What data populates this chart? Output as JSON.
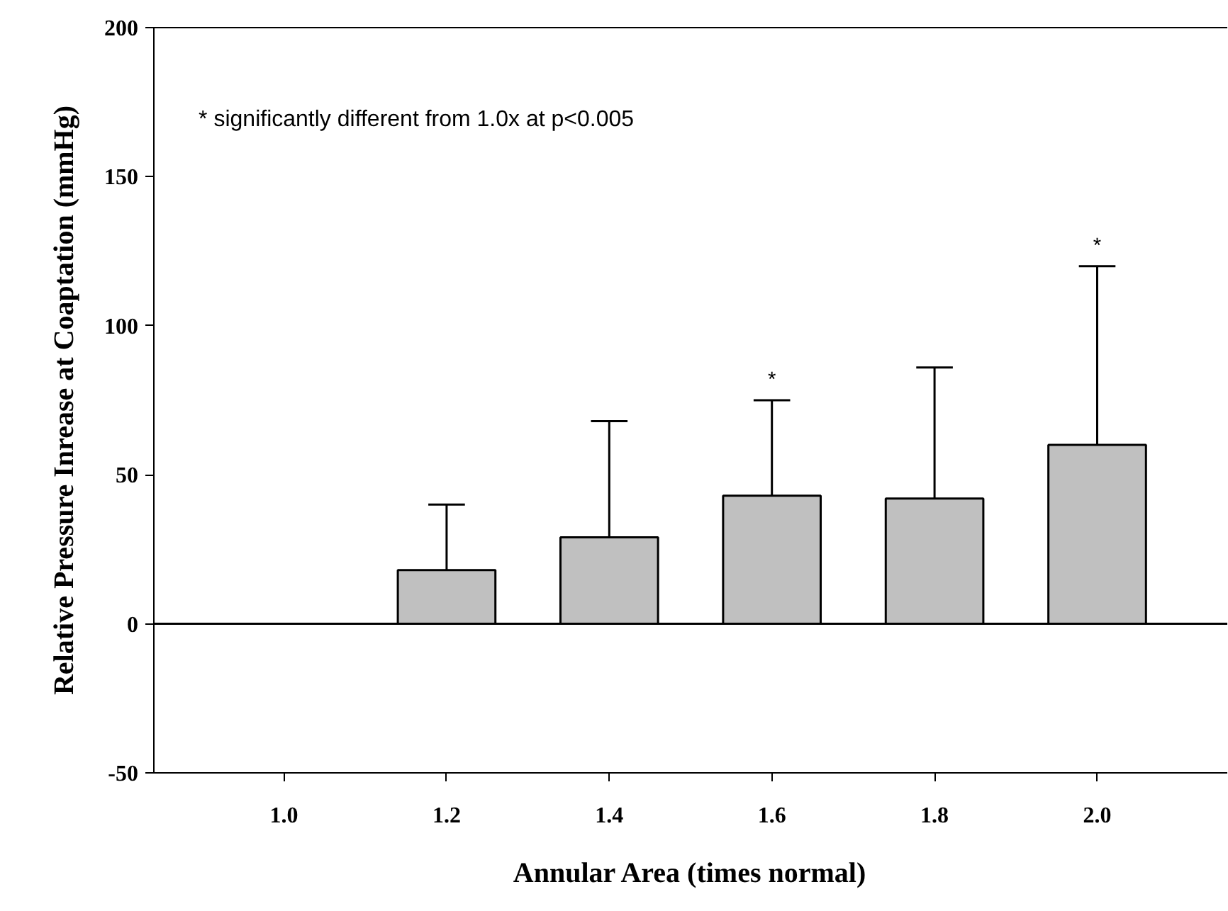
{
  "chart_data": {
    "type": "bar",
    "xlabel": "Annular Area (times normal)",
    "ylabel": "Relative Pressure Inrease at Coaptation (mmHg)",
    "x": [
      1.2,
      1.4,
      1.6,
      1.8,
      2.0
    ],
    "values": [
      18,
      29,
      43,
      42,
      60
    ],
    "errors": [
      [
        18,
        40
      ],
      [
        29,
        68
      ],
      [
        43,
        75
      ],
      [
        42,
        86
      ],
      [
        60,
        120
      ]
    ],
    "color": "#c0c0c0",
    "xlim": [
      0.84,
      2.16
    ],
    "xticks": [
      {
        "value": 1.0,
        "label": "1.0"
      },
      {
        "value": 1.2,
        "label": "1.2"
      },
      {
        "value": 1.4,
        "label": "1.4"
      },
      {
        "value": 1.6,
        "label": "1.6"
      },
      {
        "value": 1.8,
        "label": "1.8"
      },
      {
        "value": 2.0,
        "label": "2.0"
      }
    ],
    "ylim": [
      -50,
      200
    ],
    "yticks": [
      -50,
      0,
      50,
      100,
      150,
      200
    ],
    "ref_lines": [
      {
        "axis": "y",
        "value": 0,
        "label": null
      }
    ],
    "annotations": [
      {
        "text": "*",
        "x": 1.6,
        "y": 75
      },
      {
        "text": "*",
        "x": 2.0,
        "y": 120
      },
      "*   significantly different from 1.0x at p<0.005"
    ],
    "grid": false
  }
}
